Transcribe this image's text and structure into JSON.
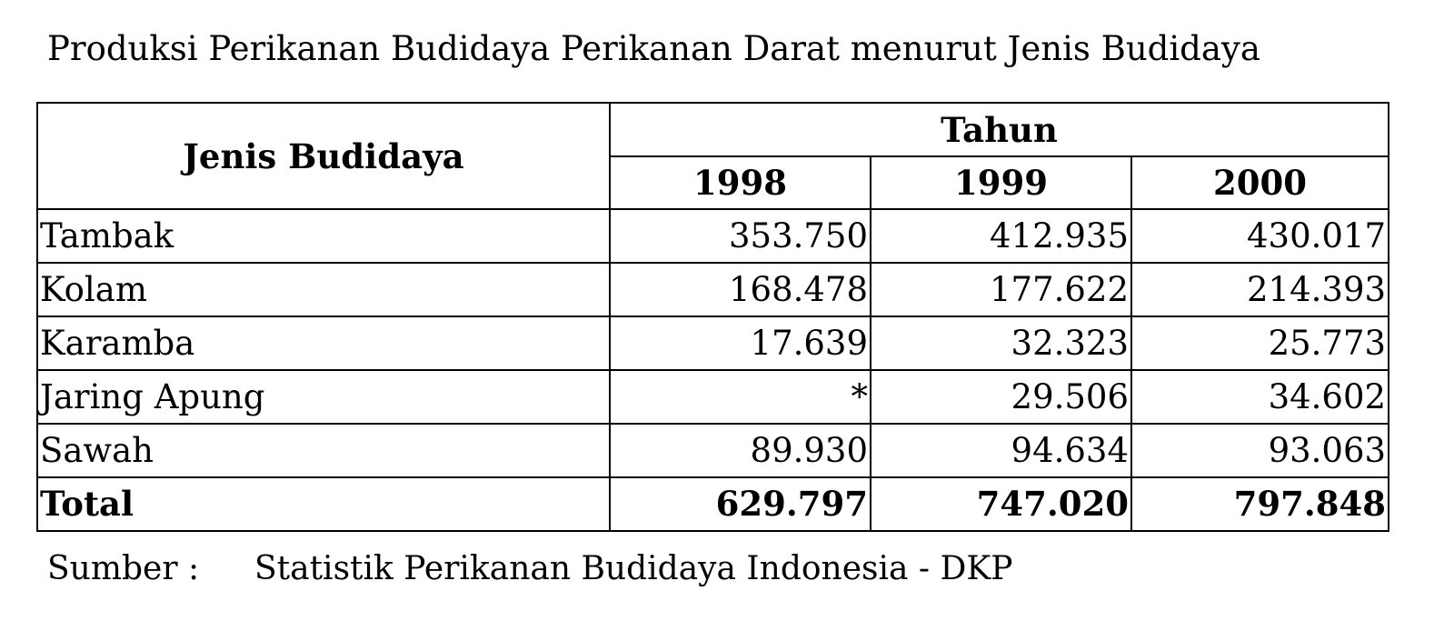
{
  "title": "Produksi Perikanan Budidaya Perikanan Darat menurut Jenis Budidaya",
  "table": {
    "header_category": "Jenis Budidaya",
    "header_group": "Tahun",
    "years": [
      "1998",
      "1999",
      "2000"
    ],
    "rows": [
      {
        "label": "Tambak",
        "values": [
          "353.750",
          "412.935",
          "430.017"
        ]
      },
      {
        "label": "Kolam",
        "values": [
          "168.478",
          "177.622",
          "214.393"
        ]
      },
      {
        "label": "Karamba",
        "values": [
          "17.639",
          "32.323",
          "25.773"
        ]
      },
      {
        "label": "Jaring Apung",
        "values": [
          "*",
          "29.506",
          "34.602"
        ]
      },
      {
        "label": "Sawah",
        "values": [
          "89.930",
          "94.634",
          "93.063"
        ]
      }
    ],
    "total": {
      "label": "Total",
      "values": [
        "629.797",
        "747.020",
        "797.848"
      ]
    }
  },
  "source": {
    "label": "Sumber :",
    "text": "Statistik Perikanan Budidaya Indonesia - DKP"
  }
}
